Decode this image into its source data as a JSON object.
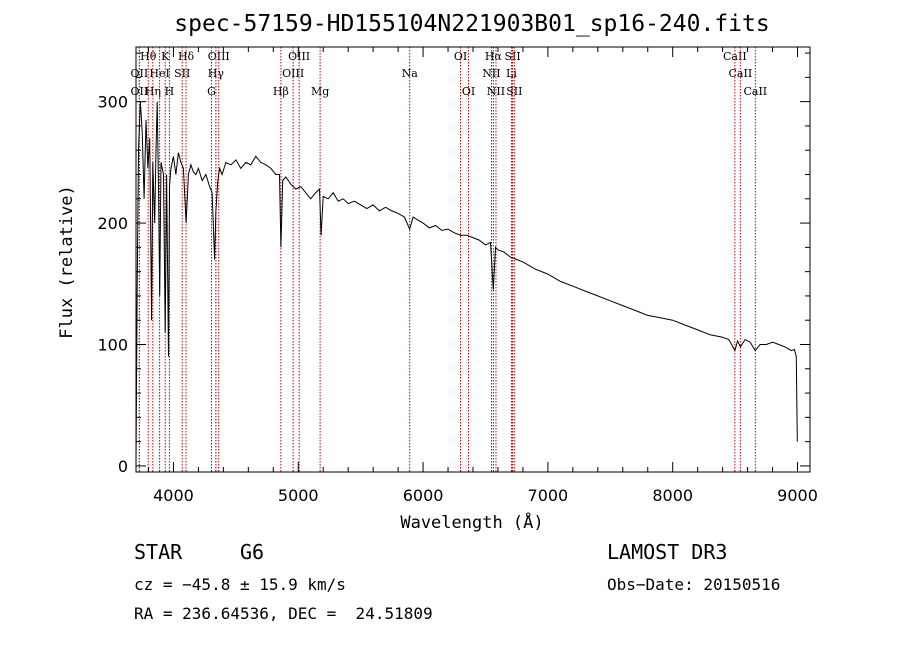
{
  "chart_data": {
    "type": "line",
    "title": "spec-57159-HD155104N221903B01_sp16-240.fits",
    "xlabel": "Wavelength (Å)",
    "ylabel": "Flux (relative)",
    "xlim": [
      3700,
      9100
    ],
    "ylim": [
      -5,
      345
    ],
    "xticks": [
      4000,
      5000,
      6000,
      7000,
      8000,
      9000
    ],
    "yticks": [
      0,
      100,
      200,
      300
    ],
    "grid": false,
    "legend": "none",
    "series": [
      {
        "name": "flux",
        "x": [
          3700,
          3710,
          3720,
          3735,
          3750,
          3765,
          3780,
          3795,
          3810,
          3825,
          3835,
          3850,
          3860,
          3870,
          3880,
          3890,
          3900,
          3920,
          3934,
          3945,
          3960,
          3968,
          3980,
          3990,
          4000,
          4020,
          4040,
          4060,
          4080,
          4101,
          4120,
          4140,
          4160,
          4180,
          4200,
          4230,
          4260,
          4290,
          4310,
          4330,
          4340,
          4355,
          4370,
          4390,
          4420,
          4460,
          4500,
          4540,
          4580,
          4620,
          4660,
          4700,
          4740,
          4780,
          4820,
          4850,
          4861,
          4875,
          4900,
          4940,
          4980,
          5020,
          5060,
          5100,
          5140,
          5170,
          5183,
          5200,
          5240,
          5280,
          5320,
          5360,
          5400,
          5450,
          5500,
          5550,
          5600,
          5650,
          5700,
          5750,
          5800,
          5850,
          5893,
          5920,
          5950,
          6000,
          6050,
          6100,
          6150,
          6200,
          6250,
          6300,
          6350,
          6400,
          6450,
          6500,
          6540,
          6563,
          6580,
          6600,
          6650,
          6700,
          6750,
          6800,
          6850,
          6900,
          6950,
          7000,
          7100,
          7200,
          7300,
          7400,
          7500,
          7600,
          7700,
          7800,
          7900,
          8000,
          8100,
          8200,
          8300,
          8400,
          8450,
          8498,
          8520,
          8542,
          8580,
          8620,
          8662,
          8700,
          8750,
          8800,
          8850,
          8900,
          8950,
          8975,
          8990,
          8998
        ],
        "values": [
          0,
          150,
          260,
          300,
          275,
          220,
          285,
          245,
          270,
          120,
          250,
          200,
          260,
          300,
          230,
          140,
          250,
          240,
          110,
          240,
          90,
          230,
          245,
          250,
          255,
          240,
          258,
          250,
          245,
          200,
          240,
          248,
          242,
          240,
          245,
          235,
          240,
          230,
          225,
          170,
          210,
          235,
          245,
          240,
          250,
          248,
          252,
          245,
          250,
          248,
          255,
          250,
          248,
          245,
          240,
          240,
          180,
          235,
          238,
          232,
          228,
          230,
          225,
          220,
          225,
          228,
          190,
          222,
          220,
          225,
          218,
          220,
          216,
          218,
          215,
          212,
          215,
          210,
          213,
          210,
          208,
          205,
          195,
          205,
          203,
          200,
          196,
          198,
          194,
          195,
          192,
          190,
          190,
          188,
          186,
          182,
          184,
          145,
          180,
          178,
          176,
          172,
          170,
          168,
          165,
          162,
          160,
          158,
          152,
          148,
          144,
          140,
          136,
          132,
          128,
          124,
          122,
          120,
          116,
          112,
          108,
          106,
          104,
          95,
          103,
          98,
          104,
          102,
          95,
          100,
          100,
          102,
          100,
          98,
          95,
          96,
          90,
          20
        ]
      }
    ],
    "spectral_lines": [
      {
        "label": "Hθ",
        "x": 3798,
        "row": 0
      },
      {
        "label": "K",
        "x": 3934,
        "row": 0
      },
      {
        "label": "Hδ",
        "x": 4101,
        "row": 0
      },
      {
        "label": "OIII",
        "x": 4363,
        "row": 0
      },
      {
        "label": "OIII",
        "x": 5007,
        "row": 0
      },
      {
        "label": "OI",
        "x": 6300,
        "row": 0
      },
      {
        "label": "Hα",
        "x": 6563,
        "row": 0
      },
      {
        "label": "SII",
        "x": 6717,
        "row": 0
      },
      {
        "label": "CaII",
        "x": 8498,
        "row": 0
      },
      {
        "label": "OII",
        "x": 3727,
        "row": 1
      },
      {
        "label": "HeI",
        "x": 3889,
        "row": 1
      },
      {
        "label": "SII",
        "x": 4070,
        "row": 1
      },
      {
        "label": "Hγ",
        "x": 4340,
        "row": 1
      },
      {
        "label": "OIII",
        "x": 4959,
        "row": 1
      },
      {
        "label": "Na",
        "x": 5893,
        "row": 1
      },
      {
        "label": "NII",
        "x": 6548,
        "row": 1
      },
      {
        "label": "Li",
        "x": 6708,
        "row": 1
      },
      {
        "label": "CaII",
        "x": 8542,
        "row": 1
      },
      {
        "label": "OII",
        "x": 3727,
        "row": 2
      },
      {
        "label": "Hη",
        "x": 3835,
        "row": 2
      },
      {
        "label": "H",
        "x": 3968,
        "row": 2
      },
      {
        "label": "G",
        "x": 4305,
        "row": 2
      },
      {
        "label": "Hβ",
        "x": 4861,
        "row": 2
      },
      {
        "label": "Mg",
        "x": 5175,
        "row": 2
      },
      {
        "label": "OI",
        "x": 6364,
        "row": 2
      },
      {
        "label": "NII",
        "x": 6584,
        "row": 2
      },
      {
        "label": "SII",
        "x": 6731,
        "row": 2
      },
      {
        "label": "CaII",
        "x": 8662,
        "row": 2
      }
    ]
  },
  "info": {
    "object_class": "STAR",
    "subclass": "G6",
    "survey": "LAMOST DR3",
    "redshift": "cz = −45.8 ± 15.9 km/s",
    "obs_date": "Obs−Date: 20150516",
    "coords": "RA = 236.64536, DEC =  24.51809"
  },
  "colors": {
    "spectrum": "#000000",
    "line_marker": "#c00000",
    "axes": "#000000"
  }
}
